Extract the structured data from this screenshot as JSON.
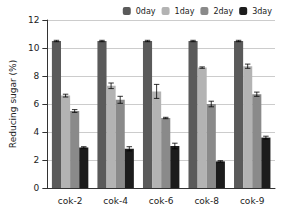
{
  "chart_data": {
    "type": "bar",
    "y_label": "Reducing sugar (%)",
    "categories": [
      "cok-2",
      "cok-4",
      "cok-6",
      "cok-8",
      "cok-9"
    ],
    "series": [
      {
        "name": "0day",
        "color": "#5a5a5a",
        "values": [
          10.5,
          10.5,
          10.5,
          10.5,
          10.5
        ],
        "errors": [
          0.05,
          0.05,
          0.05,
          0.05,
          0.05
        ]
      },
      {
        "name": "1day",
        "color": "#b3b3b3",
        "values": [
          6.6,
          7.3,
          6.9,
          8.6,
          8.7
        ],
        "errors": [
          0.1,
          0.2,
          0.5,
          0.05,
          0.15
        ]
      },
      {
        "name": "2day",
        "color": "#8a8a8a",
        "values": [
          5.5,
          6.3,
          5.0,
          6.0,
          6.7
        ],
        "errors": [
          0.1,
          0.25,
          0.05,
          0.2,
          0.15
        ]
      },
      {
        "name": "3day",
        "color": "#1c1c1c",
        "values": [
          2.9,
          2.8,
          3.0,
          1.9,
          3.6
        ],
        "errors": [
          0.05,
          0.15,
          0.2,
          0.05,
          0.1
        ]
      }
    ],
    "ylim": [
      0,
      12
    ],
    "yticks": [
      0,
      2,
      4,
      6,
      8,
      10,
      12
    ],
    "grid": true,
    "legend": "upper right"
  }
}
